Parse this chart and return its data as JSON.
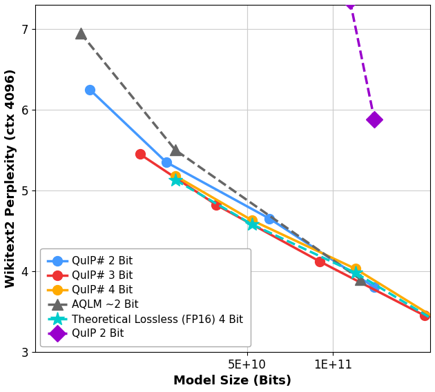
{
  "quip_sharp_2bit": {
    "x": [
      14000000000.0,
      26000000000.0,
      60000000000.0,
      140000000000.0
    ],
    "y": [
      6.25,
      5.35,
      4.65,
      3.8
    ],
    "color": "#4499ff",
    "label": "QuIP# 2 Bit",
    "marker": "o",
    "linestyle": "-"
  },
  "quip_sharp_3bit": {
    "x": [
      21000000000.0,
      39000000000.0,
      90000000000.0,
      210000000000.0
    ],
    "y": [
      5.45,
      4.82,
      4.12,
      3.45
    ],
    "color": "#ee3333",
    "label": "QuIP# 3 Bit",
    "marker": "o",
    "linestyle": "-"
  },
  "quip_sharp_4bit": {
    "x": [
      28000000000.0,
      52000000000.0,
      120000000000.0,
      280000000000.0
    ],
    "y": [
      5.18,
      4.63,
      4.03,
      3.23
    ],
    "color": "#ffaa00",
    "label": "QuIP# 4 Bit",
    "marker": "o",
    "linestyle": "-"
  },
  "aqlm": {
    "x": [
      13000000000.0,
      28000000000.0,
      125000000000.0
    ],
    "y": [
      6.95,
      5.5,
      3.9
    ],
    "color": "#666666",
    "label": "AQLM ~2 Bit",
    "marker": "^",
    "linestyle": "--"
  },
  "theoretical_lossless": {
    "x": [
      28000000000.0,
      52000000000.0,
      120000000000.0,
      280000000000.0
    ],
    "y": [
      5.13,
      4.58,
      3.98,
      3.2
    ],
    "color": "#00cccc",
    "label": "Theoretical Lossless (FP16) 4 Bit",
    "marker": "*",
    "linestyle": "--"
  },
  "quip_2bit": {
    "x": [
      115000000000.0,
      140000000000.0
    ],
    "y": [
      7.35,
      5.88
    ],
    "color": "#9900cc",
    "label": "QuIP 2 Bit",
    "marker": "D",
    "linestyle": "--"
  },
  "xlim": [
    9000000000.0,
    220000000000.0
  ],
  "ylim": [
    3.0,
    7.3
  ],
  "xlabel": "Model Size (Bits)",
  "ylabel": "Wikitext2 Perplexity (ctx 4096)",
  "xticks": [
    50000000000.0,
    100000000000.0
  ],
  "xtick_labels": [
    "5E+10",
    "1E+11"
  ],
  "yticks": [
    3,
    4,
    5,
    6,
    7
  ],
  "grid": true,
  "legend_loc": "lower left",
  "bg_color": "#ffffff",
  "marker_sizes": {
    "quip_sharp_2bit": 10,
    "quip_sharp_3bit": 10,
    "quip_sharp_4bit": 10,
    "aqlm": 12,
    "theoretical_lossless": 15,
    "quip_2bit": 12
  },
  "linewidths": {
    "quip_sharp_2bit": 2.5,
    "quip_sharp_3bit": 2.5,
    "quip_sharp_4bit": 2.5,
    "aqlm": 2.5,
    "theoretical_lossless": 2.5,
    "quip_2bit": 2.5
  }
}
